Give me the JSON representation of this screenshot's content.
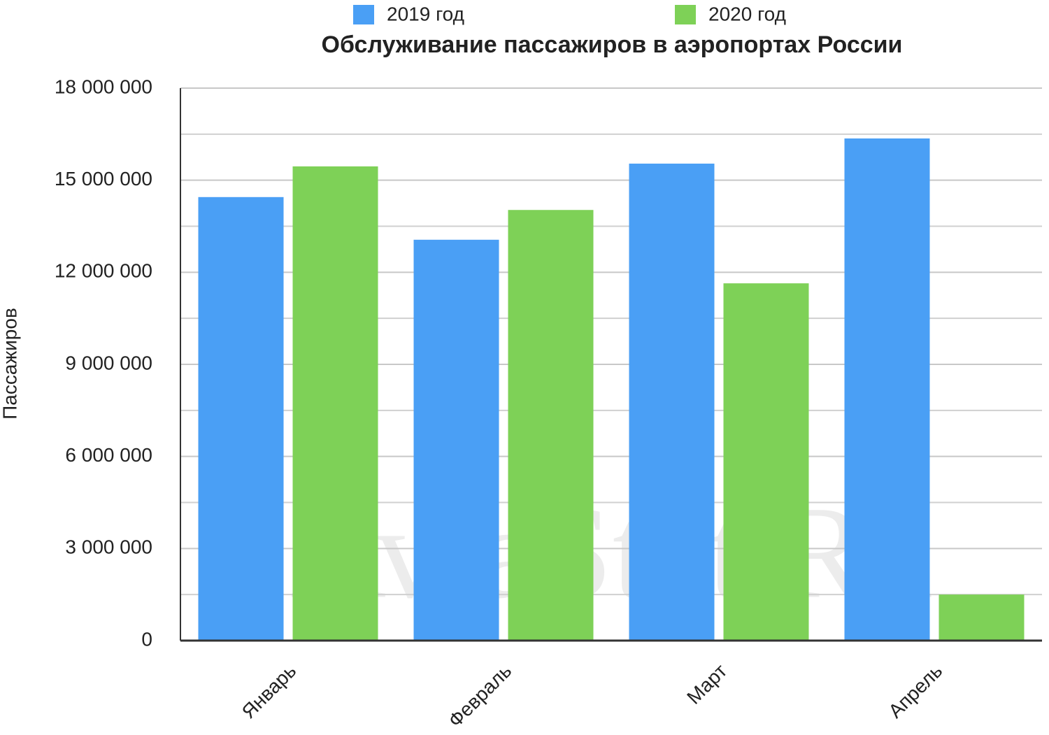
{
  "chart_data": {
    "type": "bar",
    "title": "Обслуживание пассажиров в аэропортах России",
    "y_label": "Пассажиров",
    "watermark": "AviaStat.Ru",
    "categories": [
      "Январь",
      "Февраль",
      "Март",
      "Апрель"
    ],
    "series": [
      {
        "name": "2019 год",
        "color": "#4a9ff5",
        "values": [
          14450000,
          13060000,
          15540000,
          16360000
        ]
      },
      {
        "name": "2020 год",
        "color": "#7ed157",
        "values": [
          15450000,
          14030000,
          11640000,
          1500000
        ]
      }
    ],
    "ylim": [
      0,
      18000000
    ],
    "yticks": [
      0,
      {
        "value": 3000000,
        "label": "3 000 000"
      },
      {
        "value": 6000000,
        "label": "6 000 000"
      },
      {
        "value": 9000000,
        "label": "9 000 000"
      },
      {
        "value": 12000000,
        "label": "12 000 000"
      },
      {
        "value": 15000000,
        "label": "15 000 000"
      },
      {
        "value": 18000000,
        "label": "18 000 000"
      }
    ],
    "minor_yticks": [
      1500000,
      4500000,
      7500000,
      10500000,
      13500000,
      16500000
    ],
    "grid": true
  }
}
